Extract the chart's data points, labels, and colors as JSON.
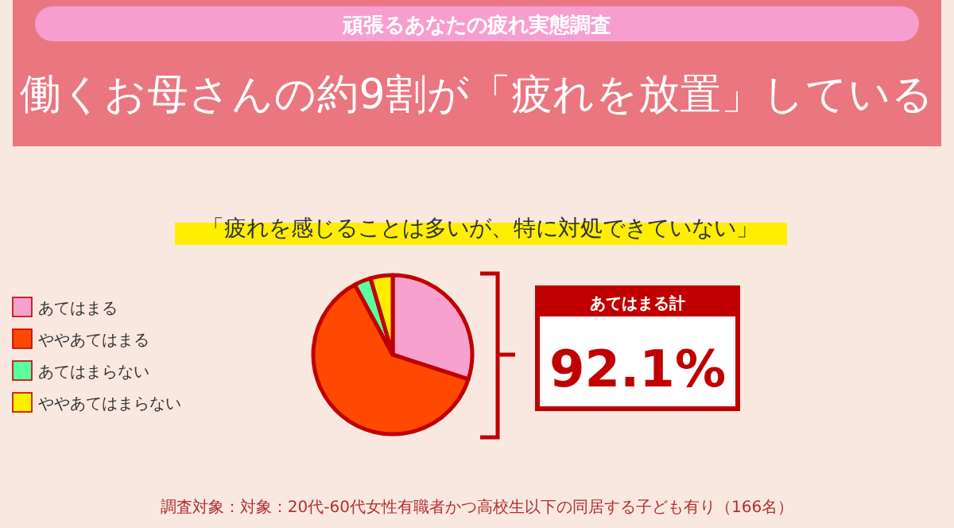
{
  "chart_data": {
    "type": "pie",
    "subtitle": "頑張るあなたの疲れ実態調査",
    "title": "働くお母さんの約9割が「疲れを放置」している",
    "categories": [
      "あてはまる",
      "ややあてはまる",
      "あてはまらない",
      "ややあてはまらない"
    ],
    "values": [
      30.0,
      62.1,
      3.4,
      4.5
    ],
    "colors": [
      "#f7a1cf",
      "#ff4800",
      "#5cffa0",
      "#ffee00"
    ],
    "legend": "left",
    "annotations": [
      "「疲れを感じることは多いが、特に対処できていない」",
      "あてはまる計",
      "92.1%",
      "調査対象：対象：20代-60代女性有職者かつ高校生以下の同居する子ども有り（166名）"
    ]
  }
}
